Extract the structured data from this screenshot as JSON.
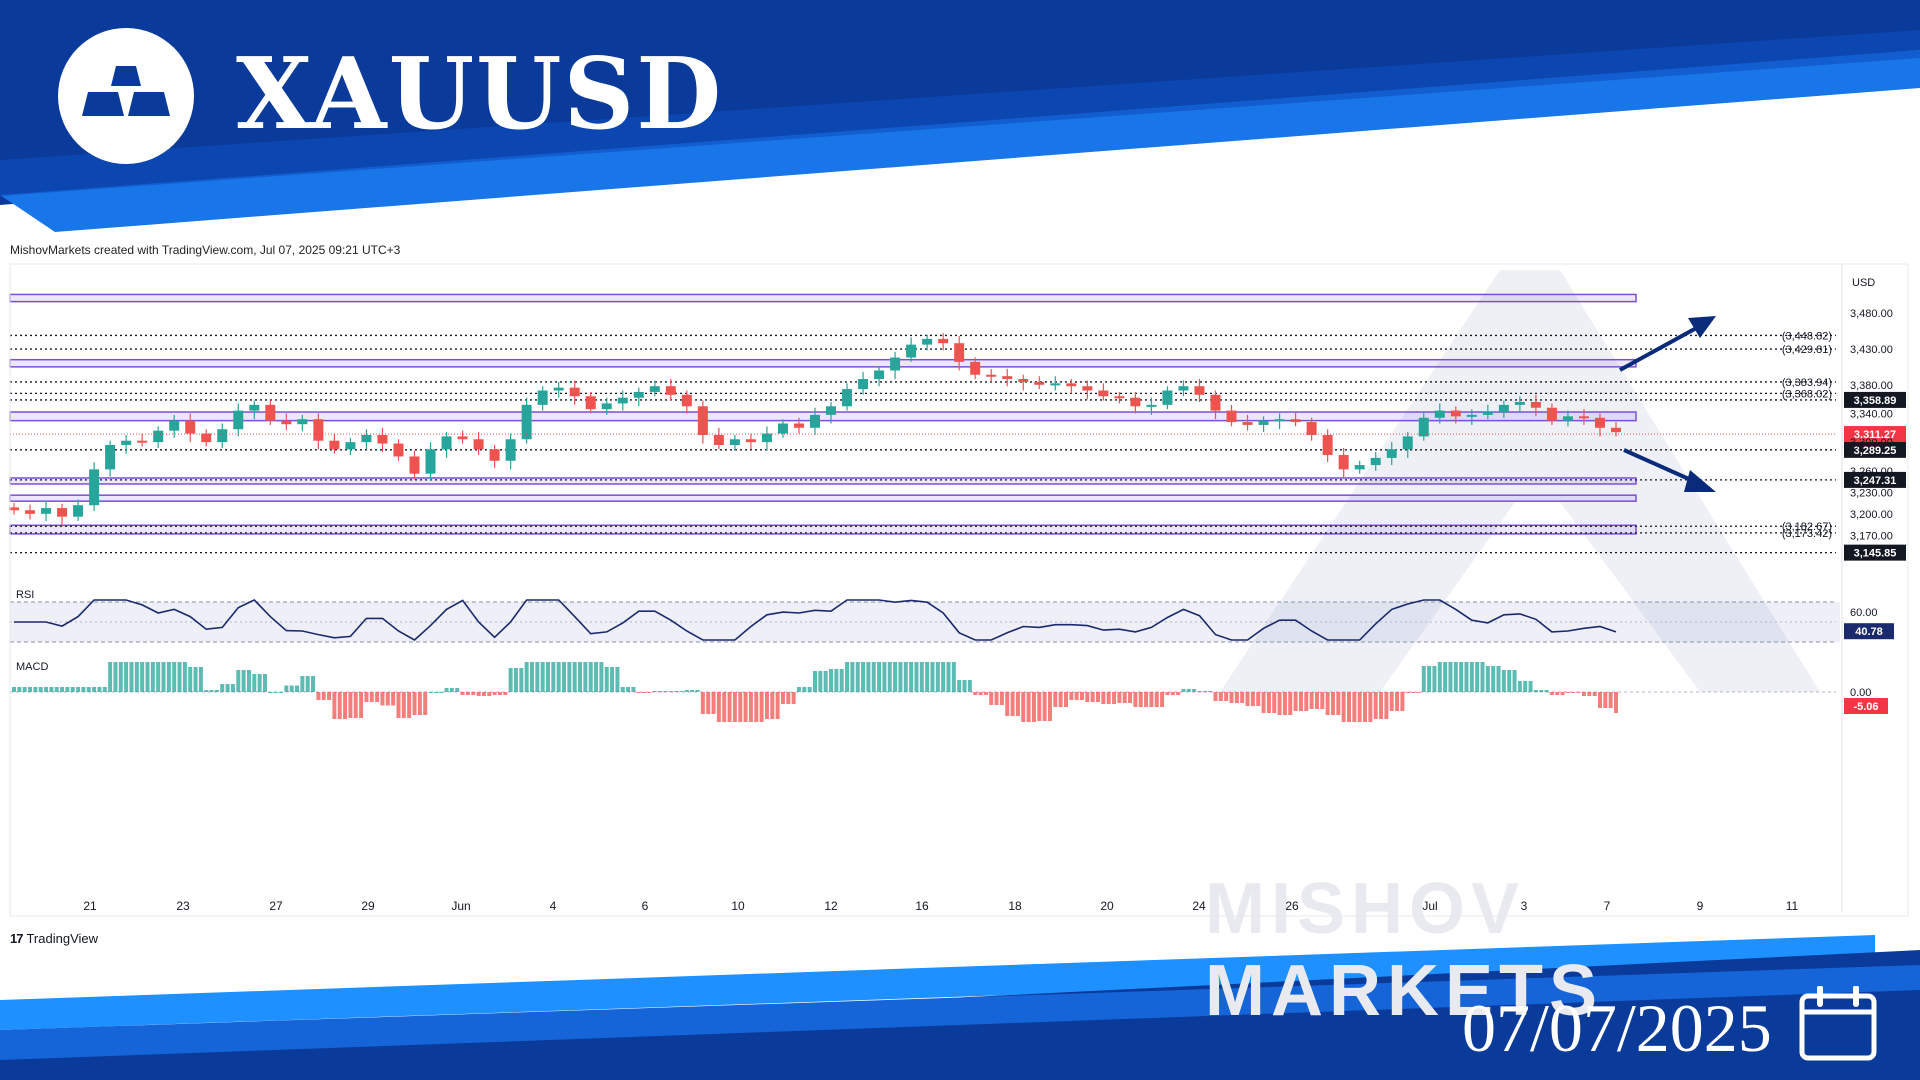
{
  "header": {
    "title": "XAUUSD",
    "date": "07/07/2025",
    "logo_icon": "gold-bars-icon",
    "calendar_icon": "calendar-icon",
    "colors": {
      "dark_blue": "#0a3a9a",
      "mid_blue": "#1565d8",
      "light_blue": "#1e90ff"
    }
  },
  "credit": "MishovMarkets created with TradingView.com, Jul 07, 2025 09:21 UTC+3",
  "tradingview_label": "TradingView",
  "watermark": "MISHOV  MARKETS",
  "chart_data": {
    "type": "candlestick",
    "currency": "USD",
    "ylim": [
      3130,
      3515
    ],
    "y_ticks": [
      3480,
      3430,
      3380,
      3340,
      3300,
      3260,
      3230,
      3200,
      3170
    ],
    "y_tick_labels": [
      "3,480.00",
      "3,430.00",
      "3,380.00",
      "3,340.00",
      "3,300.00",
      "3,260.00",
      "3,230.00",
      "3,200.00",
      "3,170.00"
    ],
    "x_labels": [
      "21",
      "23",
      "27",
      "29",
      "Jun",
      "4",
      "6",
      "10",
      "12",
      "16",
      "18",
      "20",
      "24",
      "26",
      "Jul",
      "3",
      "7",
      "9",
      "11"
    ],
    "close_series": [
      3205,
      3200,
      3208,
      3196,
      3212,
      3262,
      3296,
      3302,
      3300,
      3316,
      3330,
      3312,
      3300,
      3318,
      3344,
      3352,
      3330,
      3325,
      3332,
      3302,
      3290,
      3300,
      3310,
      3298,
      3280,
      3256,
      3290,
      3308,
      3304,
      3290,
      3274,
      3304,
      3352,
      3372,
      3376,
      3364,
      3346,
      3354,
      3362,
      3370,
      3378,
      3366,
      3350,
      3310,
      3296,
      3304,
      3300,
      3312,
      3326,
      3320,
      3338,
      3350,
      3374,
      3388,
      3400,
      3418,
      3436,
      3444,
      3438,
      3412,
      3394,
      3392,
      3388,
      3384,
      3380,
      3382,
      3378,
      3372,
      3364,
      3362,
      3350,
      3352,
      3372,
      3378,
      3366,
      3344,
      3328,
      3324,
      3330,
      3332,
      3328,
      3310,
      3282,
      3262,
      3268,
      3278,
      3290,
      3308,
      3334,
      3344,
      3336,
      3338,
      3342,
      3352,
      3356,
      3348,
      3330,
      3336,
      3334,
      3320,
      3314
    ],
    "hlines": [
      {
        "label": "(3,448.82)",
        "value": 3448.82,
        "badge": false
      },
      {
        "label": "(3,429.81)",
        "value": 3429.81,
        "badge": false
      },
      {
        "label": "(3,383.94)",
        "value": 3383.94,
        "badge": false
      },
      {
        "label": "(3,368.02)",
        "value": 3368.02,
        "badge": false
      },
      {
        "label": "3,358.89",
        "value": 3358.89,
        "badge": true
      },
      {
        "label": "3,289.25",
        "value": 3289.25,
        "badge": true
      },
      {
        "label": "3,247.31",
        "value": 3247.31,
        "badge": true
      },
      {
        "label": "(3,182.67)",
        "value": 3182.67,
        "badge": false
      },
      {
        "label": "(3,173.42)",
        "value": 3173.42,
        "badge": false
      },
      {
        "label": "3,145.85",
        "value": 3145.85,
        "badge": true
      }
    ],
    "zones": [
      {
        "low": 3496,
        "high": 3506
      },
      {
        "low": 3405,
        "high": 3415
      },
      {
        "low": 3330,
        "high": 3342
      },
      {
        "low": 3242,
        "high": 3250
      },
      {
        "low": 3218,
        "high": 3226
      },
      {
        "low": 3172,
        "high": 3184
      }
    ],
    "last_price": {
      "value": 3311.27,
      "label": "3,311.27"
    },
    "rsi": {
      "label": "RSI",
      "value": 40.78,
      "value_label": "40.78",
      "tick_label": "60.00",
      "band": [
        30,
        70
      ]
    },
    "macd": {
      "label": "MACD",
      "value": -5.06,
      "value_label": "-5.06",
      "zero_label": "0.00"
    },
    "arrows": [
      "up-arrow",
      "down-arrow"
    ],
    "colors": {
      "up": "#26a69a",
      "down": "#ef5350",
      "zone": "#7b4fd8",
      "line": "#1a2a6c",
      "badge": "#131722",
      "price_badge": "#f23645",
      "rsi_badge": "#1a2a6c"
    }
  }
}
